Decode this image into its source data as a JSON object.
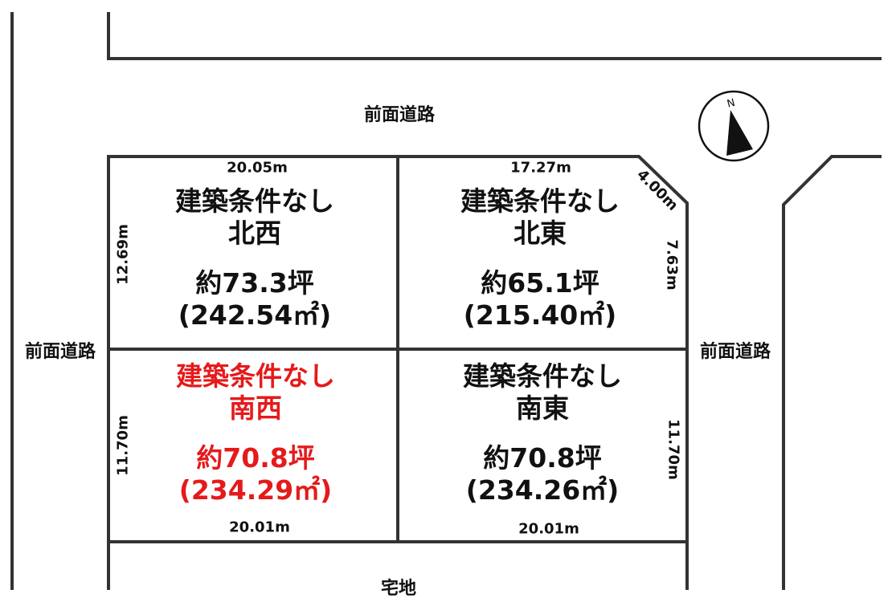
{
  "roads": {
    "top": "前面道路",
    "left": "前面道路",
    "right": "前面道路",
    "bottom": "宅地"
  },
  "compass": {
    "label": "N"
  },
  "lots": [
    {
      "id": "northwest",
      "condition": "建築条件なし",
      "name": "北西",
      "tsubo": "約73.3坪",
      "area": "(242.54㎡)",
      "color": "#111111"
    },
    {
      "id": "northeast",
      "condition": "建築条件なし",
      "name": "北東",
      "tsubo": "約65.1坪",
      "area": "(215.40㎡)",
      "color": "#111111"
    },
    {
      "id": "southwest",
      "condition": "建築条件なし",
      "name": "南西",
      "tsubo": "約70.8坪",
      "area": "(234.29㎡)",
      "color": "#e51a1a"
    },
    {
      "id": "southeast",
      "condition": "建築条件なし",
      "name": "南東",
      "tsubo": "約70.8坪",
      "area": "(234.26㎡)",
      "color": "#111111"
    }
  ],
  "dimensions": {
    "nw_top": "20.05m",
    "nw_left": "12.69m",
    "ne_top": "17.27m",
    "ne_corner": "4.00m",
    "ne_right": "7.63m",
    "sw_left": "11.70m",
    "sw_bottom": "20.01m",
    "se_right": "11.70m",
    "se_bottom": "20.01m"
  }
}
